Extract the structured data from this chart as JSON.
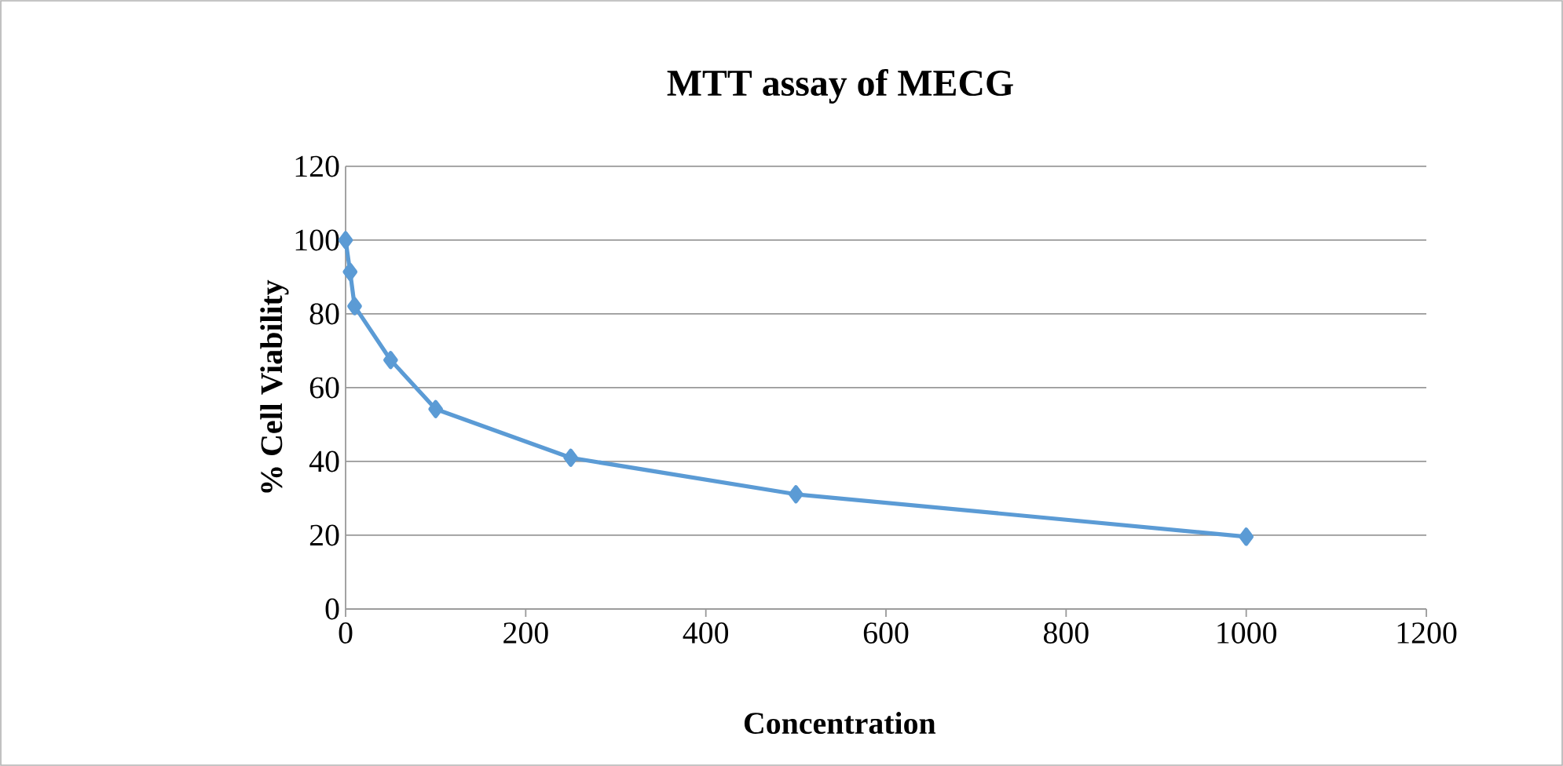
{
  "chart_data": {
    "type": "line",
    "title": "MTT assay of MECG",
    "xlabel": "Concentration",
    "ylabel": "% Cell Viability",
    "x": [
      0,
      5,
      10,
      50,
      100,
      250,
      500,
      1000
    ],
    "series": [
      {
        "color": "#5b9bd5",
        "values": [
          100,
          91.4,
          82.1,
          67.5,
          54.2,
          41,
          31.1,
          19.6
        ]
      }
    ],
    "xlim": [
      0,
      1200
    ],
    "xticks": [
      0,
      200,
      400,
      600,
      800,
      1000,
      1200
    ],
    "ylim": [
      0,
      120
    ],
    "yticks": [
      0,
      20,
      40,
      60,
      80,
      100,
      120
    ],
    "grid": "y",
    "marker": "diamond",
    "line_style": "solid"
  }
}
